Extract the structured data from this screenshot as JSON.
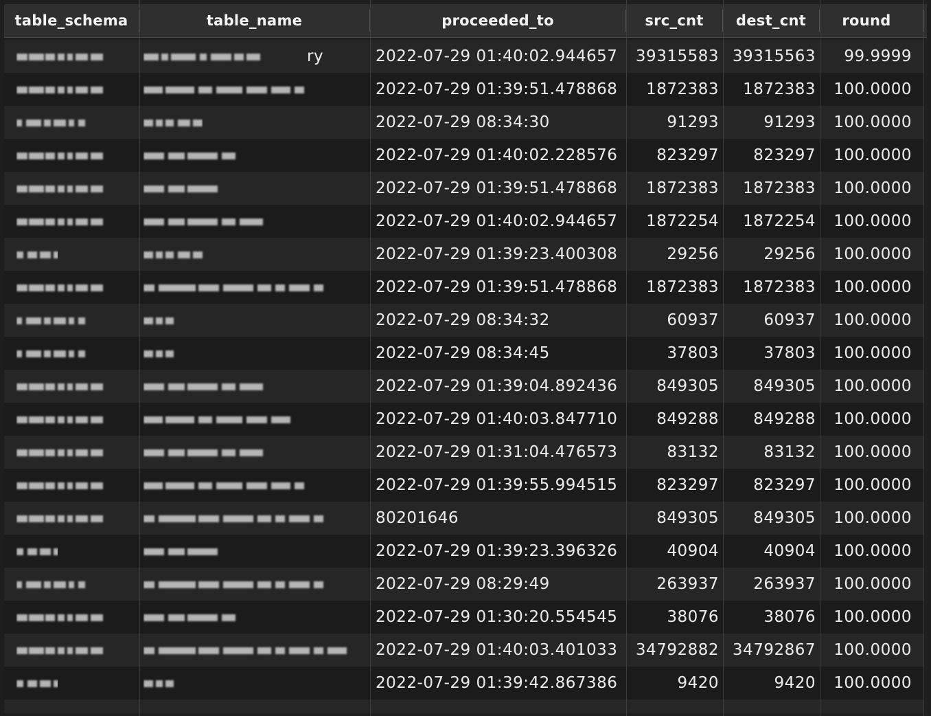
{
  "columns": [
    "table_schema",
    "table_name",
    "proceeded_to",
    "src_cnt",
    "dest_cnt",
    "round"
  ],
  "rows": [
    {
      "proceeded_to": "2022-07-29 01:40:02.944657",
      "src_cnt": "39315583",
      "dest_cnt": "39315563",
      "round": "99.9999",
      "name_tail": "ry"
    },
    {
      "proceeded_to": "2022-07-29 01:39:51.478868",
      "src_cnt": "1872383",
      "dest_cnt": "1872383",
      "round": "100.0000",
      "name_tail": ""
    },
    {
      "proceeded_to": "2022-07-29 08:34:30",
      "src_cnt": "91293",
      "dest_cnt": "91293",
      "round": "100.0000",
      "name_tail": ""
    },
    {
      "proceeded_to": "2022-07-29 01:40:02.228576",
      "src_cnt": "823297",
      "dest_cnt": "823297",
      "round": "100.0000",
      "name_tail": ""
    },
    {
      "proceeded_to": "2022-07-29 01:39:51.478868",
      "src_cnt": "1872383",
      "dest_cnt": "1872383",
      "round": "100.0000",
      "name_tail": ""
    },
    {
      "proceeded_to": "2022-07-29 01:40:02.944657",
      "src_cnt": "1872254",
      "dest_cnt": "1872254",
      "round": "100.0000",
      "name_tail": ""
    },
    {
      "proceeded_to": "2022-07-29 01:39:23.400308",
      "src_cnt": "29256",
      "dest_cnt": "29256",
      "round": "100.0000",
      "name_tail": ""
    },
    {
      "proceeded_to": "2022-07-29 01:39:51.478868",
      "src_cnt": "1872383",
      "dest_cnt": "1872383",
      "round": "100.0000",
      "name_tail": ""
    },
    {
      "proceeded_to": "2022-07-29 08:34:32",
      "src_cnt": "60937",
      "dest_cnt": "60937",
      "round": "100.0000",
      "name_tail": ""
    },
    {
      "proceeded_to": "2022-07-29 08:34:45",
      "src_cnt": "37803",
      "dest_cnt": "37803",
      "round": "100.0000",
      "name_tail": ""
    },
    {
      "proceeded_to": "2022-07-29 01:39:04.892436",
      "src_cnt": "849305",
      "dest_cnt": "849305",
      "round": "100.0000",
      "name_tail": ""
    },
    {
      "proceeded_to": "2022-07-29 01:40:03.847710",
      "src_cnt": "849288",
      "dest_cnt": "849288",
      "round": "100.0000",
      "name_tail": ""
    },
    {
      "proceeded_to": "2022-07-29 01:31:04.476573",
      "src_cnt": "83132",
      "dest_cnt": "83132",
      "round": "100.0000",
      "name_tail": ""
    },
    {
      "proceeded_to": "2022-07-29 01:39:55.994515",
      "src_cnt": "823297",
      "dest_cnt": "823297",
      "round": "100.0000",
      "name_tail": ""
    },
    {
      "proceeded_to": "80201646",
      "src_cnt": "849305",
      "dest_cnt": "849305",
      "round": "100.0000",
      "name_tail": ""
    },
    {
      "proceeded_to": "2022-07-29 01:39:23.396326",
      "src_cnt": "40904",
      "dest_cnt": "40904",
      "round": "100.0000",
      "name_tail": ""
    },
    {
      "proceeded_to": "2022-07-29 08:29:49",
      "src_cnt": "263937",
      "dest_cnt": "263937",
      "round": "100.0000",
      "name_tail": ""
    },
    {
      "proceeded_to": "2022-07-29 01:30:20.554545",
      "src_cnt": "38076",
      "dest_cnt": "38076",
      "round": "100.0000",
      "name_tail": ""
    },
    {
      "proceeded_to": "2022-07-29 01:40:03.401033",
      "src_cnt": "34792882",
      "dest_cnt": "34792867",
      "round": "100.0000",
      "name_tail": ""
    },
    {
      "proceeded_to": "2022-07-29 01:39:42.867386",
      "src_cnt": "9420",
      "dest_cnt": "9420",
      "round": "100.0000",
      "name_tail": ""
    }
  ]
}
